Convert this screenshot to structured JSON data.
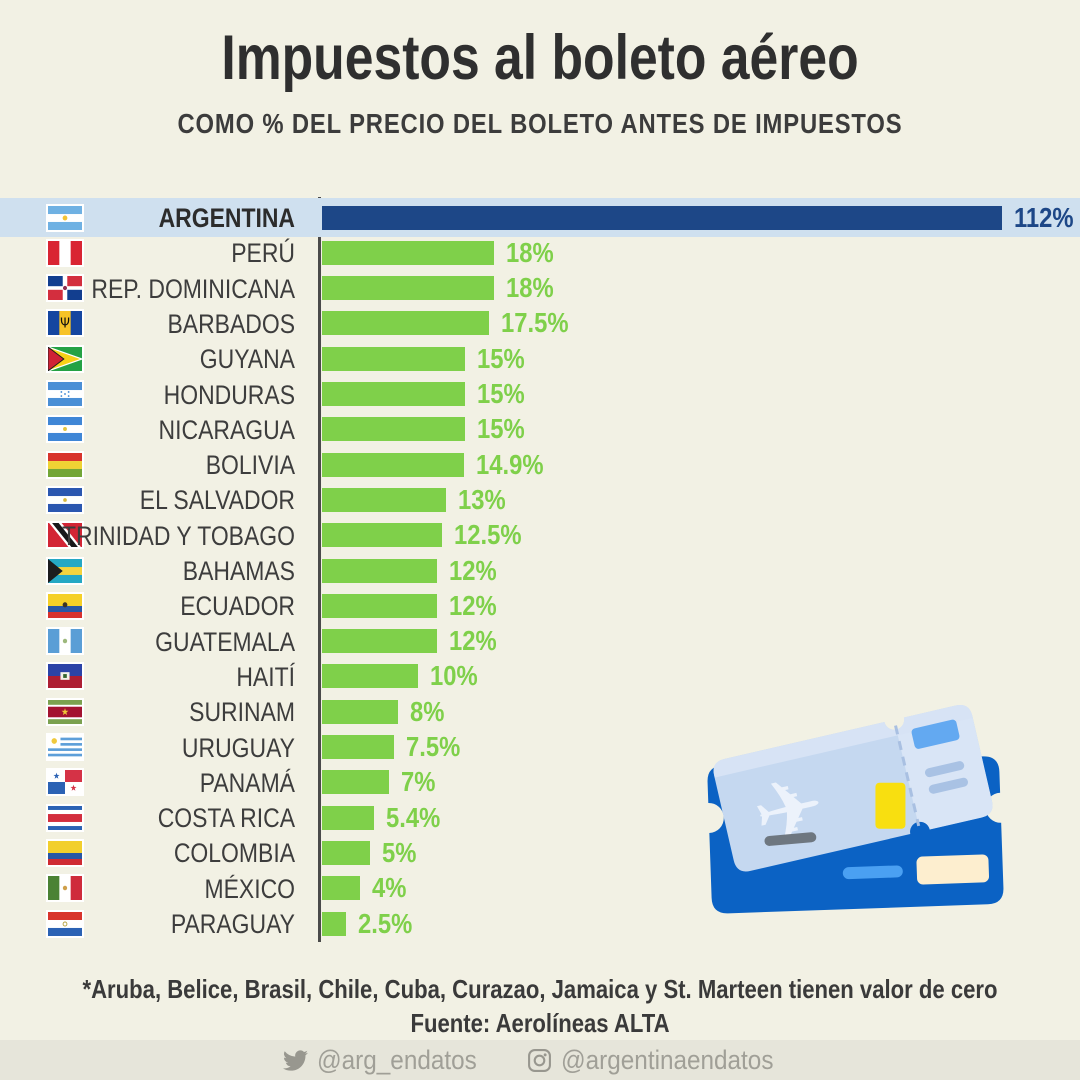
{
  "title": "Impuestos al boleto aéreo",
  "subtitle": "COMO % DEL PRECIO DEL BOLETO ANTES DE IMPUESTOS",
  "chart_data": {
    "type": "bar",
    "orientation": "horizontal",
    "title": "Impuestos al boleto aéreo",
    "subtitle": "COMO % DEL PRECIO DEL BOLETO ANTES DE IMPUESTOS",
    "unit": "%",
    "categories": [
      "ARGENTINA",
      "PERÚ",
      "REP. DOMINICANA",
      "BARBADOS",
      "GUYANA",
      "HONDURAS",
      "NICARAGUA",
      "BOLIVIA",
      "EL SALVADOR",
      "TRINIDAD Y TOBAGO",
      "BAHAMAS",
      "ECUADOR",
      "GUATEMALA",
      "HAITÍ",
      "SURINAM",
      "URUGUAY",
      "PANAMÁ",
      "COSTA RICA",
      "COLOMBIA",
      "MÉXICO",
      "PARAGUAY"
    ],
    "values": [
      112,
      18,
      18,
      17.5,
      15,
      15,
      15,
      14.9,
      13,
      12.5,
      12,
      12,
      12,
      10,
      8,
      7.5,
      7,
      5.4,
      5,
      4,
      2.5
    ],
    "value_labels": [
      "112%",
      "18%",
      "18%",
      "17.5%",
      "15%",
      "15%",
      "15%",
      "14.9%",
      "13%",
      "12.5%",
      "12%",
      "12%",
      "12%",
      "10%",
      "8%",
      "7.5%",
      "7%",
      "5.4%",
      "5%",
      "4%",
      "2.5%"
    ],
    "flags": [
      "flag-argentina-icon",
      "flag-peru-icon",
      "flag-dominican-republic-icon",
      "flag-barbados-icon",
      "flag-guyana-icon",
      "flag-honduras-icon",
      "flag-nicaragua-icon",
      "flag-bolivia-icon",
      "flag-el-salvador-icon",
      "flag-trinidad-tobago-icon",
      "flag-bahamas-icon",
      "flag-ecuador-icon",
      "flag-guatemala-icon",
      "flag-haiti-icon",
      "flag-suriname-icon",
      "flag-uruguay-icon",
      "flag-panama-icon",
      "flag-costa-rica-icon",
      "flag-colombia-icon",
      "flag-mexico-icon",
      "flag-paraguay-icon"
    ],
    "highlight_index": 0,
    "bar_color": "#7fd04a",
    "highlight_bar_color": "#1d4787",
    "highlight_row_color": "#cfe0ef",
    "xlim": [
      0,
      118
    ],
    "grid": false,
    "legend": false
  },
  "footnote": "*Aruba, Belice, Brasil, Chile, Cuba, Curazao, Jamaica y St. Marteen tienen valor de cero",
  "source": "Fuente: Aerolíneas ALTA",
  "social": {
    "twitter_icon": "twitter-icon",
    "twitter_handle": "@arg_endatos",
    "instagram_icon": "instagram-icon",
    "instagram_handle": "@argentinaendatos"
  },
  "colors": {
    "background": "#f2f1e4",
    "text_dark": "#333333",
    "axis": "#4a4a4a",
    "bar_green": "#7fd04a",
    "bar_navy": "#1d4787",
    "highlight_row": "#cfe0ef",
    "footer_bar": "#e6e5da",
    "footer_text": "#a09f97"
  }
}
